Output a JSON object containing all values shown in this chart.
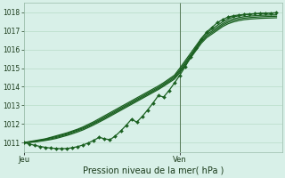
{
  "title": "",
  "xlabel": "Pression niveau de la mer( hPa )",
  "bg_color": "#d8f0e8",
  "grid_color": "#b8ddc8",
  "line_color": "#1a6020",
  "marker_color": "#1a6020",
  "ylim": [
    1010.5,
    1018.5
  ],
  "yticks": [
    1011,
    1012,
    1013,
    1014,
    1015,
    1016,
    1017,
    1018
  ],
  "xlim": [
    0,
    48
  ],
  "vline_pos": 29,
  "day_labels": [
    "Jeu",
    "Ven"
  ],
  "day_positions": [
    0,
    29
  ],
  "series_smooth": [
    [
      1011.0,
      1011.05,
      1011.1,
      1011.15,
      1011.2,
      1011.28,
      1011.36,
      1011.44,
      1011.52,
      1011.62,
      1011.72,
      1011.84,
      1011.98,
      1012.12,
      1012.28,
      1012.44,
      1012.6,
      1012.76,
      1012.92,
      1013.08,
      1013.24,
      1013.4,
      1013.56,
      1013.72,
      1013.88,
      1014.04,
      1014.22,
      1014.42,
      1014.62,
      1015.0,
      1015.4,
      1015.8,
      1016.2,
      1016.6,
      1016.9,
      1017.1,
      1017.3,
      1017.5,
      1017.65,
      1017.75,
      1017.82,
      1017.87,
      1017.9,
      1017.92,
      1017.94,
      1017.95,
      1017.96,
      1017.97
    ],
    [
      1011.0,
      1011.03,
      1011.07,
      1011.12,
      1011.18,
      1011.25,
      1011.32,
      1011.4,
      1011.48,
      1011.58,
      1011.68,
      1011.79,
      1011.92,
      1012.06,
      1012.21,
      1012.37,
      1012.53,
      1012.69,
      1012.85,
      1013.01,
      1013.17,
      1013.33,
      1013.49,
      1013.65,
      1013.81,
      1013.97,
      1014.15,
      1014.35,
      1014.55,
      1014.9,
      1015.3,
      1015.7,
      1016.1,
      1016.5,
      1016.8,
      1017.0,
      1017.2,
      1017.4,
      1017.55,
      1017.65,
      1017.72,
      1017.77,
      1017.8,
      1017.82,
      1017.84,
      1017.85,
      1017.86,
      1017.87
    ],
    [
      1011.0,
      1011.02,
      1011.05,
      1011.09,
      1011.14,
      1011.2,
      1011.27,
      1011.35,
      1011.43,
      1011.53,
      1011.63,
      1011.74,
      1011.87,
      1012.01,
      1012.16,
      1012.31,
      1012.47,
      1012.63,
      1012.79,
      1012.95,
      1013.11,
      1013.27,
      1013.43,
      1013.59,
      1013.75,
      1013.91,
      1014.09,
      1014.28,
      1014.48,
      1014.82,
      1015.22,
      1015.62,
      1016.02,
      1016.42,
      1016.72,
      1016.92,
      1017.12,
      1017.32,
      1017.47,
      1017.57,
      1017.64,
      1017.69,
      1017.72,
      1017.74,
      1017.76,
      1017.77,
      1017.78,
      1017.79
    ],
    [
      1011.0,
      1011.01,
      1011.03,
      1011.07,
      1011.11,
      1011.16,
      1011.22,
      1011.3,
      1011.38,
      1011.47,
      1011.57,
      1011.68,
      1011.81,
      1011.95,
      1012.1,
      1012.25,
      1012.41,
      1012.57,
      1012.73,
      1012.89,
      1013.05,
      1013.21,
      1013.37,
      1013.53,
      1013.69,
      1013.85,
      1014.03,
      1014.22,
      1014.41,
      1014.75,
      1015.14,
      1015.54,
      1015.94,
      1016.34,
      1016.64,
      1016.84,
      1017.04,
      1017.24,
      1017.39,
      1017.49,
      1017.56,
      1017.61,
      1017.64,
      1017.66,
      1017.68,
      1017.69,
      1017.7,
      1017.71
    ]
  ],
  "series_marker": [
    1011.0,
    1010.92,
    1010.85,
    1010.79,
    1010.74,
    1010.7,
    1010.68,
    1010.67,
    1010.68,
    1010.72,
    1010.78,
    1010.87,
    1010.98,
    1011.12,
    1011.28,
    1011.2,
    1011.15,
    1011.35,
    1011.62,
    1011.92,
    1012.25,
    1012.1,
    1012.4,
    1012.75,
    1013.12,
    1013.52,
    1013.45,
    1013.8,
    1014.2,
    1014.62,
    1015.08,
    1015.58,
    1016.08,
    1016.58,
    1016.95,
    1017.2,
    1017.45,
    1017.62,
    1017.75,
    1017.82,
    1017.86,
    1017.89,
    1017.91,
    1017.93,
    1017.95,
    1017.96,
    1017.97,
    1017.98
  ]
}
